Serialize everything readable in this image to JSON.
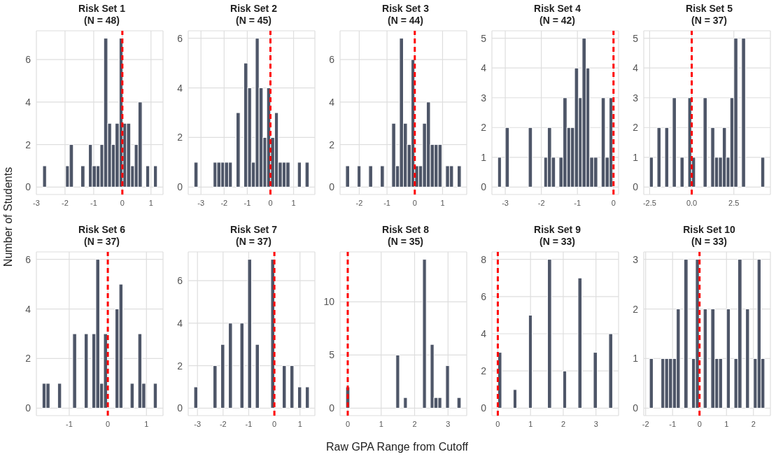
{
  "chart_data": [
    {
      "type": "histogram",
      "title": "Risk Set 1",
      "subtitle": "(N = 48)",
      "ylabel": "Number of Students",
      "color": "#4e5668",
      "grid": true,
      "bins": [
        -2.78,
        -2.65,
        -2.51,
        -2.38,
        -2.25,
        -2.11,
        -1.98,
        -1.85,
        -1.71,
        -1.58,
        -1.45,
        -1.31,
        -1.18,
        -1.05,
        -0.91,
        -0.78,
        -0.65,
        -0.51,
        -0.38,
        -0.25,
        -0.11,
        0.02,
        0.15,
        0.29,
        0.42,
        0.55,
        0.69,
        0.82,
        0.95,
        1.09,
        1.22
      ],
      "values": [
        1,
        0,
        0,
        0,
        0,
        0,
        1,
        2,
        0,
        0,
        1,
        0,
        2,
        1,
        1,
        2,
        7,
        3,
        2,
        3,
        7,
        3,
        3,
        1,
        2,
        4,
        0,
        1,
        0,
        1
      ],
      "xlim": [
        -3.0,
        1.42
      ],
      "xticks": [
        -3,
        -2,
        -1,
        0,
        1
      ],
      "ylim": [
        -0.35,
        7.35
      ],
      "yticks": [
        0,
        2,
        4,
        6
      ],
      "ref_lines": [
        {
          "axis": "x",
          "value": 0,
          "color": "#ff0000",
          "line_style": "dashed"
        }
      ]
    },
    {
      "type": "histogram",
      "title": "Risk Set 2",
      "subtitle": "(N = 45)",
      "color": "#4e5668",
      "grid": true,
      "bins": [
        -3.3,
        -3.13,
        -2.97,
        -2.8,
        -2.64,
        -2.47,
        -2.31,
        -2.14,
        -1.98,
        -1.81,
        -1.65,
        -1.48,
        -1.31,
        -1.15,
        -0.98,
        -0.82,
        -0.65,
        -0.49,
        -0.32,
        -0.16,
        0.01,
        0.18,
        0.34,
        0.51,
        0.67,
        0.84,
        1.0,
        1.17,
        1.33,
        1.5,
        1.67
      ],
      "values": [
        1,
        0,
        0,
        0,
        0,
        1,
        1,
        1,
        1,
        1,
        0,
        3,
        0,
        5,
        4,
        1,
        6,
        4,
        2,
        4,
        2,
        3,
        1,
        1,
        1,
        0,
        0,
        1,
        0,
        1
      ],
      "xlim": [
        -3.55,
        1.92
      ],
      "xticks": [
        -3,
        -2,
        -1,
        0,
        1
      ],
      "ylim": [
        -0.3,
        6.3
      ],
      "yticks": [
        0,
        2,
        4,
        6
      ],
      "ref_lines": [
        {
          "axis": "x",
          "value": 0,
          "color": "#ff0000",
          "line_style": "dashed"
        }
      ]
    },
    {
      "type": "histogram",
      "title": "Risk Set 3",
      "subtitle": "(N = 44)",
      "color": "#4e5668",
      "grid": true,
      "bins": [
        -2.49,
        -2.35,
        -2.21,
        -2.07,
        -1.94,
        -1.8,
        -1.66,
        -1.52,
        -1.38,
        -1.24,
        -1.1,
        -0.97,
        -0.83,
        -0.69,
        -0.55,
        -0.41,
        -0.27,
        -0.13,
        0.0,
        0.14,
        0.28,
        0.42,
        0.56,
        0.7,
        0.84,
        0.98,
        1.11,
        1.25,
        1.39,
        1.53,
        1.67
      ],
      "values": [
        1,
        0,
        0,
        1,
        0,
        0,
        1,
        0,
        0,
        1,
        0,
        0,
        3,
        1,
        7,
        3,
        2,
        6,
        1,
        1,
        3,
        4,
        2,
        2,
        2,
        0,
        1,
        1,
        0,
        1
      ],
      "xlim": [
        -2.69,
        1.87
      ],
      "xticks": [
        -2,
        -1,
        0,
        1
      ],
      "ylim": [
        -0.35,
        7.35
      ],
      "yticks": [
        0,
        2,
        4,
        6
      ],
      "ref_lines": [
        {
          "axis": "x",
          "value": 0,
          "color": "#ff0000",
          "line_style": "dashed"
        }
      ]
    },
    {
      "type": "histogram",
      "title": "Risk Set 4",
      "subtitle": "(N = 42)",
      "color": "#4e5668",
      "grid": true,
      "bins": [
        -3.21,
        -3.11,
        -3.0,
        -2.89,
        -2.36,
        -2.25,
        -1.93,
        -1.83,
        -1.72,
        -1.61,
        -1.51,
        -1.4,
        -1.29,
        -1.19,
        -1.08,
        -0.97,
        -0.87,
        -0.76,
        -0.66,
        -0.55,
        -0.44,
        -0.34,
        -0.23,
        -0.12,
        -0.02
      ],
      "values": [
        1,
        0,
        2,
        0,
        2,
        0,
        1,
        2,
        1,
        0,
        1,
        3,
        2,
        2,
        4,
        3,
        5,
        4,
        1,
        1,
        0,
        3,
        1,
        3
      ],
      "xlim": [
        -3.37,
        0.14
      ],
      "xticks": [
        -3,
        -2,
        -1,
        0
      ],
      "ylim": [
        -0.25,
        5.25
      ],
      "yticks": [
        0,
        1,
        2,
        3,
        4,
        5
      ],
      "ref_lines": [
        {
          "axis": "x",
          "value": 0,
          "color": "#ff0000",
          "line_style": "dashed"
        }
      ]
    },
    {
      "type": "histogram",
      "title": "Risk Set 5",
      "subtitle": "(N = 37)",
      "color": "#4e5668",
      "grid": true,
      "bins": [
        -2.51,
        -2.29,
        -2.06,
        -1.83,
        -1.6,
        -1.37,
        -1.15,
        -0.92,
        -0.69,
        -0.46,
        -0.23,
        -0.01,
        0.22,
        0.45,
        0.68,
        0.91,
        1.13,
        1.36,
        1.59,
        1.82,
        2.05,
        2.27,
        2.5,
        2.73,
        2.96,
        3.19,
        3.41,
        3.64,
        3.87,
        4.1,
        4.33
      ],
      "values": [
        1,
        0,
        2,
        0,
        2,
        0,
        3,
        0,
        1,
        0,
        3,
        1,
        0,
        0,
        3,
        0,
        2,
        1,
        1,
        2,
        1,
        3,
        5,
        0,
        5,
        0,
        0,
        0,
        0,
        1
      ],
      "xlim": [
        -2.85,
        4.67
      ],
      "xticks": [
        -2.5,
        {
          "value": 0,
          "label": "0.0"
        },
        2.5
      ],
      "ylim": [
        -0.25,
        5.25
      ],
      "yticks": [
        0,
        1,
        2,
        3,
        4,
        5
      ],
      "ref_lines": [
        {
          "axis": "x",
          "value": 0,
          "color": "#ff0000",
          "line_style": "dashed"
        }
      ]
    },
    {
      "type": "histogram",
      "title": "Risk Set 6",
      "subtitle": "(N = 37)",
      "color": "#4e5668",
      "grid": true,
      "bins": [
        -1.7,
        -1.6,
        -1.5,
        -1.3,
        -1.2,
        -0.91,
        -0.81,
        -0.61,
        -0.51,
        -0.41,
        -0.31,
        -0.21,
        -0.11,
        -0.01,
        0.19,
        0.29,
        0.39,
        0.58,
        0.68,
        0.78,
        0.88,
        0.98,
        1.18,
        1.28
      ],
      "values": [
        1,
        1,
        0,
        1,
        0,
        3,
        0,
        3,
        0,
        3,
        6,
        1,
        3,
        0,
        4,
        5,
        0,
        1,
        0,
        3,
        1,
        0,
        1
      ],
      "xlim": [
        -1.85,
        1.43
      ],
      "xticks": [
        -1,
        0,
        1
      ],
      "ylim": [
        -0.3,
        6.3
      ],
      "yticks": [
        0,
        2,
        4,
        6
      ],
      "ref_lines": [
        {
          "axis": "x",
          "value": 0,
          "color": "#ff0000",
          "line_style": "dashed"
        }
      ]
    },
    {
      "type": "histogram",
      "title": "Risk Set 7",
      "subtitle": "(N = 37)",
      "color": "#4e5668",
      "grid": true,
      "bins": [
        -3.14,
        -2.99,
        -2.84,
        -2.69,
        -2.54,
        -2.39,
        -2.24,
        -2.09,
        -1.94,
        -1.79,
        -1.64,
        -1.49,
        -1.34,
        -1.19,
        -1.04,
        -0.89,
        -0.74,
        -0.59,
        -0.44,
        -0.29,
        -0.14,
        0.01,
        0.16,
        0.31,
        0.46,
        0.61,
        0.76,
        0.91,
        1.06,
        1.21,
        1.36
      ],
      "values": [
        1,
        0,
        0,
        0,
        0,
        2,
        0,
        3,
        0,
        4,
        0,
        0,
        4,
        0,
        7,
        0,
        3,
        0,
        0,
        0,
        7,
        0,
        0,
        2,
        0,
        2,
        0,
        1,
        0,
        1
      ],
      "xlim": [
        -3.36,
        1.58
      ],
      "xticks": [
        -3,
        -2,
        -1,
        0,
        1
      ],
      "ylim": [
        -0.35,
        7.35
      ],
      "yticks": [
        0,
        2,
        4,
        6
      ],
      "ref_lines": [
        {
          "axis": "x",
          "value": 0,
          "color": "#ff0000",
          "line_style": "dashed"
        }
      ]
    },
    {
      "type": "histogram",
      "title": "Risk Set 8",
      "subtitle": "(N = 35)",
      "xlabel": "Raw GPA Range from Cutoff",
      "color": "#4e5668",
      "grid": true,
      "bins": [
        -0.06,
        0.06,
        0.17,
        0.29,
        0.4,
        0.52,
        0.63,
        0.75,
        0.86,
        0.98,
        1.09,
        1.21,
        1.32,
        1.44,
        1.55,
        1.67,
        1.78,
        1.9,
        2.01,
        2.12,
        2.24,
        2.35,
        2.47,
        2.58,
        2.7,
        2.81,
        2.93,
        3.04,
        3.16,
        3.27,
        3.39
      ],
      "values": [
        2,
        0,
        0,
        0,
        0,
        0,
        0,
        0,
        0,
        0,
        0,
        0,
        0,
        5,
        0,
        1,
        0,
        0,
        0,
        0,
        14,
        0,
        6,
        1,
        1,
        0,
        4,
        0,
        0,
        1
      ],
      "xlim": [
        -0.23,
        3.56
      ],
      "xticks": [
        0,
        1,
        2,
        3
      ],
      "ylim": [
        -0.7,
        14.7
      ],
      "yticks": [
        0,
        5,
        10
      ],
      "ref_lines": [
        {
          "axis": "x",
          "value": 0,
          "color": "#ff0000",
          "line_style": "dashed"
        }
      ]
    },
    {
      "type": "histogram",
      "title": "Risk Set 9",
      "subtitle": "(N = 33)",
      "color": "#4e5668",
      "grid": true,
      "bins": [
        0.0,
        0.12,
        0.23,
        0.35,
        0.47,
        0.58,
        0.7,
        0.82,
        0.94,
        1.05,
        1.17,
        1.29,
        1.4,
        1.52,
        1.64,
        1.75,
        1.87,
        1.99,
        2.1,
        2.22,
        2.34,
        2.45,
        2.57,
        2.69,
        2.81,
        2.92,
        3.04,
        3.16,
        3.27,
        3.39,
        3.51
      ],
      "values": [
        3,
        0,
        0,
        0,
        1,
        0,
        0,
        0,
        5,
        0,
        0,
        0,
        0,
        8,
        0,
        0,
        0,
        2,
        0,
        0,
        0,
        7,
        0,
        0,
        0,
        3,
        0,
        0,
        0,
        4
      ],
      "xlim": [
        -0.18,
        3.69
      ],
      "xticks": [
        0,
        1,
        2,
        3
      ],
      "ylim": [
        -0.4,
        8.4
      ],
      "yticks": [
        0,
        2,
        4,
        6,
        8
      ],
      "ref_lines": [
        {
          "axis": "x",
          "value": 0,
          "color": "#ff0000",
          "line_style": "dashed"
        }
      ]
    },
    {
      "type": "histogram",
      "title": "Risk Set 10",
      "subtitle": "(N = 33)",
      "color": "#4e5668",
      "grid": true,
      "bins": [
        -1.86,
        -1.72,
        -1.58,
        -1.43,
        -1.29,
        -1.15,
        -1.0,
        -0.86,
        -0.72,
        -0.58,
        -0.43,
        -0.29,
        -0.15,
        -0.01,
        0.14,
        0.28,
        0.42,
        0.57,
        0.71,
        0.85,
        1.0,
        1.14,
        1.28,
        1.42,
        1.57,
        1.71,
        1.85,
        2.0,
        2.14,
        2.28,
        2.42
      ],
      "values": [
        1,
        0,
        0,
        1,
        1,
        1,
        1,
        2,
        0,
        3,
        0,
        1,
        3,
        0,
        2,
        0,
        2,
        1,
        1,
        0,
        2,
        0,
        1,
        3,
        0,
        2,
        0,
        1,
        3,
        1
      ],
      "xlim": [
        -2.07,
        2.63
      ],
      "xticks": [
        -2,
        -1,
        0,
        1,
        2
      ],
      "ylim": [
        -0.15,
        3.15
      ],
      "yticks": [
        0,
        1,
        2,
        3
      ],
      "ref_lines": [
        {
          "axis": "x",
          "value": 0,
          "color": "#ff0000",
          "line_style": "dashed"
        }
      ]
    }
  ]
}
